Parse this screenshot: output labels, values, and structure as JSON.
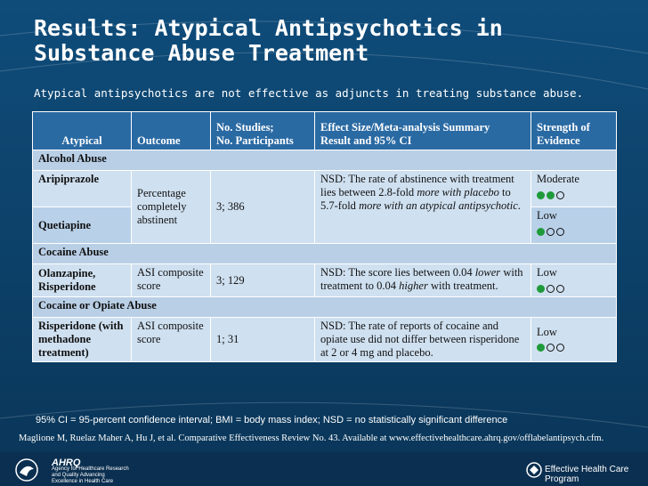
{
  "title": "Results: Atypical Antipsychotics in Substance Abuse Treatment",
  "subtitle": "Atypical antipsychotics are not effective as adjuncts in treating substance abuse.",
  "table": {
    "headers": {
      "atypical": "Atypical",
      "outcome": "Outcome",
      "studies_line1": "No. Studies;",
      "studies_line2": "No. Participants",
      "effect_line1": "Effect Size/Meta-analysis Summary",
      "effect_line2": "Result and 95% CI",
      "strength_line1": "Strength of",
      "strength_line2": "Evidence"
    },
    "sections": {
      "alcohol": "Alcohol Abuse",
      "cocaine": "Cocaine Abuse",
      "cocaine_opiate": "Cocaine or Opiate Abuse"
    },
    "alcohol": {
      "drug1": "Aripiprazole",
      "drug2": "Quetiapine",
      "outcome": "Percentage completely abstinent",
      "studies": "3; 386",
      "effect_a": "NSD: The rate of abstinence with treatment lies between 2.8-fold ",
      "effect_b": "more with placebo",
      "effect_c": " to 5.7-fold ",
      "effect_d": "more with an atypical antipsychotic",
      "effect_e": ".",
      "strength1": "Moderate",
      "strength1_level": 2,
      "strength2": "Low",
      "strength2_level": 1
    },
    "cocaine": {
      "drug": "Olanzapine, Risperidone",
      "outcome": "ASI composite score",
      "studies": "3; 129",
      "effect_a": "NSD: The score lies between 0.04 ",
      "effect_b": "lower",
      "effect_c": " with treatment to 0.04 ",
      "effect_d": "higher",
      "effect_e": " with treatment.",
      "strength": "Low",
      "strength_level": 1
    },
    "cocaine_opiate": {
      "drug": "Risperidone (with methadone treatment)",
      "outcome": "ASI composite score",
      "studies": "1; 31",
      "effect": "NSD: The rate of reports of cocaine and opiate use did not differ between risperidone at 2 or 4 mg and placebo.",
      "strength": "Low",
      "strength_level": 1
    }
  },
  "footnote": "95% CI = 95-percent confidence interval; BMI = body mass index; NSD = no statistically significant difference",
  "citation": "Maglione M, Ruelaz Maher A, Hu J, et al. Comparative Effectiveness Review No. 43. Available at www.effectivehealthcare.ahrq.gov/offlabelantipsych.cfm.",
  "logos": {
    "ahrq": "AHRQ",
    "ahrq_tagline": "Agency for Healthcare Research and Quality Advancing Excellence in Health Care",
    "ehc": "Effective Health Care Program"
  },
  "colors": {
    "header": "#2a6aa3",
    "row_light": "#cfe0f0",
    "section": "#b9cfe6",
    "dot_on": "#1f9a3a"
  }
}
